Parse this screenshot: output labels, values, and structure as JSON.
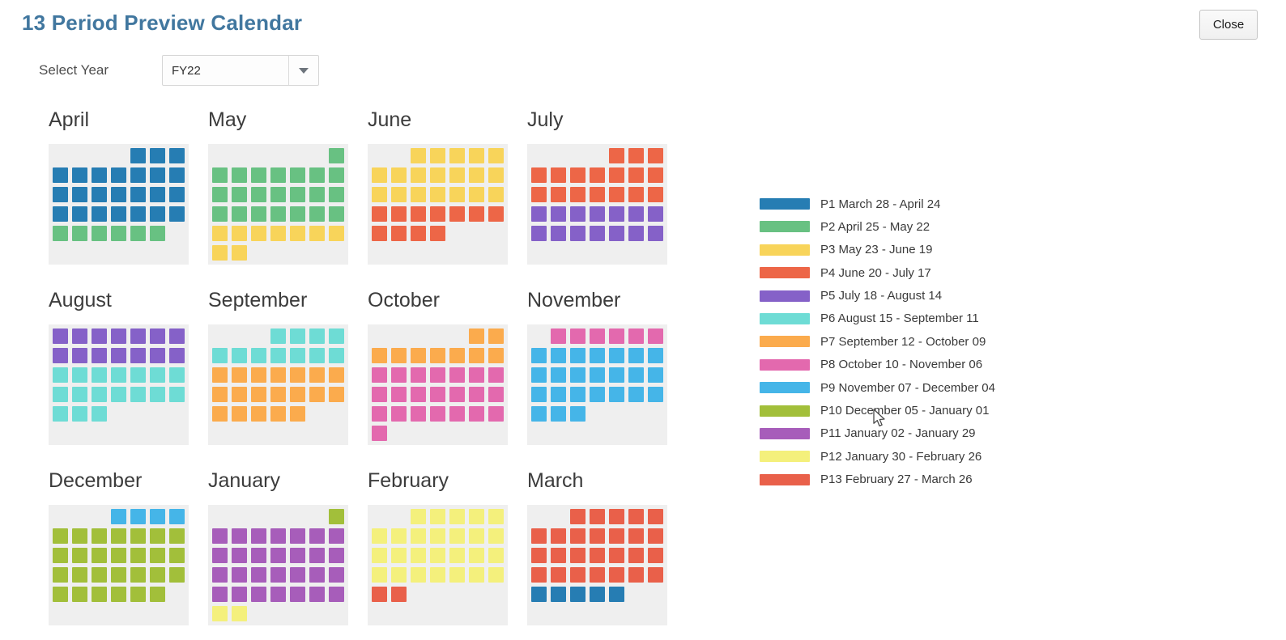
{
  "header": {
    "title": "13 Period Preview Calendar",
    "close_label": "Close"
  },
  "controls": {
    "select_year_label": "Select Year",
    "selected_year": "FY22"
  },
  "colors": {
    "title_text": "#41779F",
    "grid_background": "#EFEFEF",
    "period_palette": {
      "P1": "#267DB3",
      "P2": "#68C182",
      "P3": "#F8D45A",
      "P4": "#ED6647",
      "P5": "#8561C8",
      "P6": "#6EDCD5",
      "P7": "#FBAB4D",
      "P8": "#E369AE",
      "P9": "#45B5E8",
      "P10": "#A2BF3A",
      "P11": "#A75DBA",
      "P12": "#F4F07C",
      "P13": "#E9604A"
    }
  },
  "legend": [
    {
      "period": "P1",
      "color": "#267DB3",
      "label": "P1 March 28 - April 24"
    },
    {
      "period": "P2",
      "color": "#68C182",
      "label": "P2 April 25 - May 22"
    },
    {
      "period": "P3",
      "color": "#F8D45A",
      "label": "P3 May 23 - June 19"
    },
    {
      "period": "P4",
      "color": "#ED6647",
      "label": "P4 June 20 - July 17"
    },
    {
      "period": "P5",
      "color": "#8561C8",
      "label": "P5 July 18 - August 14"
    },
    {
      "period": "P6",
      "color": "#6EDCD5",
      "label": "P6 August 15 - September 11"
    },
    {
      "period": "P7",
      "color": "#FBAB4D",
      "label": "P7 September 12 - October 09"
    },
    {
      "period": "P8",
      "color": "#E369AE",
      "label": "P8 October 10 - November 06"
    },
    {
      "period": "P9",
      "color": "#45B5E8",
      "label": "P9 November 07 - December 04"
    },
    {
      "period": "P10",
      "color": "#A2BF3A",
      "label": "P10 December 05 - January 01"
    },
    {
      "period": "P11",
      "color": "#A75DBA",
      "label": "P11 January 02 - January 29"
    },
    {
      "period": "P12",
      "color": "#F4F07C",
      "label": "P12 January 30 - February 26"
    },
    {
      "period": "P13",
      "color": "#E9604A",
      "label": "P13 February 27 - March 26"
    }
  ],
  "months": [
    {
      "name": "April",
      "weeks": [
        [
          0,
          0,
          0,
          0,
          1,
          1,
          1
        ],
        [
          1,
          1,
          1,
          1,
          1,
          1,
          1
        ],
        [
          1,
          1,
          1,
          1,
          1,
          1,
          1
        ],
        [
          1,
          1,
          1,
          1,
          1,
          1,
          1
        ],
        [
          2,
          2,
          2,
          2,
          2,
          2,
          0
        ],
        [
          0,
          0,
          0,
          0,
          0,
          0,
          0
        ]
      ]
    },
    {
      "name": "May",
      "weeks": [
        [
          0,
          0,
          0,
          0,
          0,
          0,
          2
        ],
        [
          2,
          2,
          2,
          2,
          2,
          2,
          2
        ],
        [
          2,
          2,
          2,
          2,
          2,
          2,
          2
        ],
        [
          2,
          2,
          2,
          2,
          2,
          2,
          2
        ],
        [
          3,
          3,
          3,
          3,
          3,
          3,
          3
        ],
        [
          3,
          3,
          0,
          0,
          0,
          0,
          0
        ]
      ]
    },
    {
      "name": "June",
      "weeks": [
        [
          0,
          0,
          3,
          3,
          3,
          3,
          3
        ],
        [
          3,
          3,
          3,
          3,
          3,
          3,
          3
        ],
        [
          3,
          3,
          3,
          3,
          3,
          3,
          3
        ],
        [
          4,
          4,
          4,
          4,
          4,
          4,
          4
        ],
        [
          4,
          4,
          4,
          4,
          0,
          0,
          0
        ],
        [
          0,
          0,
          0,
          0,
          0,
          0,
          0
        ]
      ]
    },
    {
      "name": "July",
      "weeks": [
        [
          0,
          0,
          0,
          0,
          4,
          4,
          4
        ],
        [
          4,
          4,
          4,
          4,
          4,
          4,
          4
        ],
        [
          4,
          4,
          4,
          4,
          4,
          4,
          4
        ],
        [
          5,
          5,
          5,
          5,
          5,
          5,
          5
        ],
        [
          5,
          5,
          5,
          5,
          5,
          5,
          5
        ],
        [
          0,
          0,
          0,
          0,
          0,
          0,
          0
        ]
      ]
    },
    {
      "name": "August",
      "weeks": [
        [
          5,
          5,
          5,
          5,
          5,
          5,
          5
        ],
        [
          5,
          5,
          5,
          5,
          5,
          5,
          5
        ],
        [
          6,
          6,
          6,
          6,
          6,
          6,
          6
        ],
        [
          6,
          6,
          6,
          6,
          6,
          6,
          6
        ],
        [
          6,
          6,
          6,
          0,
          0,
          0,
          0
        ],
        [
          0,
          0,
          0,
          0,
          0,
          0,
          0
        ]
      ]
    },
    {
      "name": "September",
      "weeks": [
        [
          0,
          0,
          0,
          6,
          6,
          6,
          6
        ],
        [
          6,
          6,
          6,
          6,
          6,
          6,
          6
        ],
        [
          7,
          7,
          7,
          7,
          7,
          7,
          7
        ],
        [
          7,
          7,
          7,
          7,
          7,
          7,
          7
        ],
        [
          7,
          7,
          7,
          7,
          7,
          0,
          0
        ],
        [
          0,
          0,
          0,
          0,
          0,
          0,
          0
        ]
      ]
    },
    {
      "name": "October",
      "weeks": [
        [
          0,
          0,
          0,
          0,
          0,
          7,
          7
        ],
        [
          7,
          7,
          7,
          7,
          7,
          7,
          7
        ],
        [
          8,
          8,
          8,
          8,
          8,
          8,
          8
        ],
        [
          8,
          8,
          8,
          8,
          8,
          8,
          8
        ],
        [
          8,
          8,
          8,
          8,
          8,
          8,
          8
        ],
        [
          8,
          0,
          0,
          0,
          0,
          0,
          0
        ]
      ]
    },
    {
      "name": "November",
      "weeks": [
        [
          0,
          8,
          8,
          8,
          8,
          8,
          8
        ],
        [
          9,
          9,
          9,
          9,
          9,
          9,
          9
        ],
        [
          9,
          9,
          9,
          9,
          9,
          9,
          9
        ],
        [
          9,
          9,
          9,
          9,
          9,
          9,
          9
        ],
        [
          9,
          9,
          9,
          0,
          0,
          0,
          0
        ],
        [
          0,
          0,
          0,
          0,
          0,
          0,
          0
        ]
      ]
    },
    {
      "name": "December",
      "weeks": [
        [
          0,
          0,
          0,
          9,
          9,
          9,
          9
        ],
        [
          10,
          10,
          10,
          10,
          10,
          10,
          10
        ],
        [
          10,
          10,
          10,
          10,
          10,
          10,
          10
        ],
        [
          10,
          10,
          10,
          10,
          10,
          10,
          10
        ],
        [
          10,
          10,
          10,
          10,
          10,
          10,
          0
        ],
        [
          0,
          0,
          0,
          0,
          0,
          0,
          0
        ]
      ]
    },
    {
      "name": "January",
      "weeks": [
        [
          0,
          0,
          0,
          0,
          0,
          0,
          10
        ],
        [
          11,
          11,
          11,
          11,
          11,
          11,
          11
        ],
        [
          11,
          11,
          11,
          11,
          11,
          11,
          11
        ],
        [
          11,
          11,
          11,
          11,
          11,
          11,
          11
        ],
        [
          11,
          11,
          11,
          11,
          11,
          11,
          11
        ],
        [
          12,
          12,
          0,
          0,
          0,
          0,
          0
        ]
      ]
    },
    {
      "name": "February",
      "weeks": [
        [
          0,
          0,
          12,
          12,
          12,
          12,
          12
        ],
        [
          12,
          12,
          12,
          12,
          12,
          12,
          12
        ],
        [
          12,
          12,
          12,
          12,
          12,
          12,
          12
        ],
        [
          12,
          12,
          12,
          12,
          12,
          12,
          12
        ],
        [
          13,
          13,
          0,
          0,
          0,
          0,
          0
        ],
        [
          0,
          0,
          0,
          0,
          0,
          0,
          0
        ]
      ]
    },
    {
      "name": "March",
      "weeks": [
        [
          0,
          0,
          13,
          13,
          13,
          13,
          13
        ],
        [
          13,
          13,
          13,
          13,
          13,
          13,
          13
        ],
        [
          13,
          13,
          13,
          13,
          13,
          13,
          13
        ],
        [
          13,
          13,
          13,
          13,
          13,
          13,
          13
        ],
        [
          1,
          1,
          1,
          1,
          1,
          0,
          0
        ],
        [
          0,
          0,
          0,
          0,
          0,
          0,
          0
        ]
      ]
    }
  ]
}
